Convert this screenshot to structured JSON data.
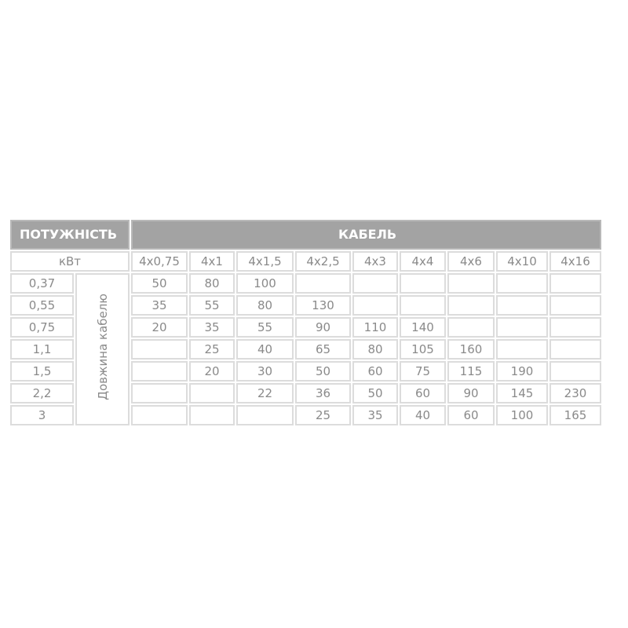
{
  "header": {
    "power": "ПОТУЖНІСТЬ",
    "cable": "КАБЕЛЬ"
  },
  "unit": "кВт",
  "side_label": "Довжина кабелю",
  "columns": [
    "4x0,75",
    "4x1",
    "4x1,5",
    "4x2,5",
    "4x3",
    "4x4",
    "4x6",
    "4x10",
    "4x16"
  ],
  "rows": [
    {
      "kw": "0,37",
      "values": [
        "50",
        "80",
        "100",
        "",
        "",
        "",
        "",
        "",
        ""
      ]
    },
    {
      "kw": "0,55",
      "values": [
        "35",
        "55",
        "80",
        "130",
        "",
        "",
        "",
        "",
        ""
      ]
    },
    {
      "kw": "0,75",
      "values": [
        "20",
        "35",
        "55",
        "90",
        "110",
        "140",
        "",
        "",
        ""
      ]
    },
    {
      "kw": "1,1",
      "values": [
        "",
        "25",
        "40",
        "65",
        "80",
        "105",
        "160",
        "",
        ""
      ]
    },
    {
      "kw": "1,5",
      "values": [
        "",
        "20",
        "30",
        "50",
        "60",
        "75",
        "115",
        "190",
        ""
      ]
    },
    {
      "kw": "2,2",
      "values": [
        "",
        "",
        "22",
        "36",
        "50",
        "60",
        "90",
        "145",
        "230"
      ]
    },
    {
      "kw": "3",
      "values": [
        "",
        "",
        "",
        "25",
        "35",
        "40",
        "60",
        "100",
        "165"
      ]
    }
  ]
}
